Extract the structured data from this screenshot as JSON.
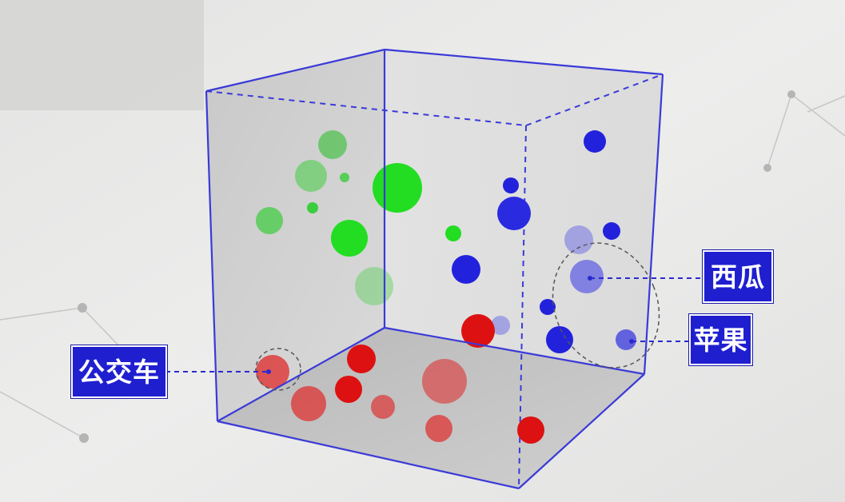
{
  "labels": {
    "bus": "公交车",
    "watermelon": "西瓜",
    "apple": "苹果"
  },
  "colors": {
    "label_bg": "#1f1fd0",
    "green": "#22dd22",
    "blue": "#2222dd",
    "red": "#dd1111",
    "cube_edge": "#3a3ad8"
  }
}
